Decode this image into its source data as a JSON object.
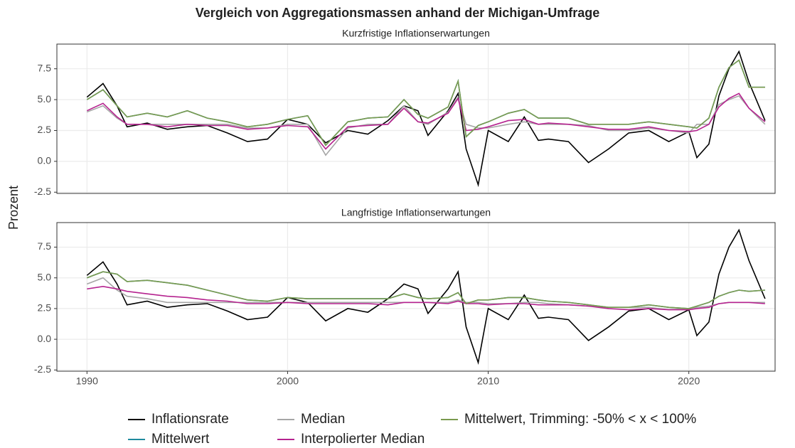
{
  "chart_data": {
    "type": "line",
    "title": "Vergleich von Aggregationsmassen anhand der Michigan-Umfrage",
    "ylabel": "Prozent",
    "grid": true,
    "legend": "bottom",
    "x": [
      1990,
      1990.8,
      1991.5,
      1992,
      1993,
      1994,
      1995,
      1996,
      1997,
      1998,
      1999,
      2000,
      2001,
      2001.9,
      2003,
      2004,
      2005,
      2005.8,
      2006.5,
      2007,
      2008,
      2008.5,
      2008.9,
      2009.5,
      2010,
      2011,
      2011.8,
      2012.5,
      2013,
      2014,
      2015,
      2016,
      2017,
      2018,
      2019,
      2020,
      2020.4,
      2021,
      2021.5,
      2022,
      2022.5,
      2023,
      2023.8
    ],
    "xlim": [
      1988.5,
      2024.3
    ],
    "xticks": [
      1990,
      2000,
      2010,
      2020
    ],
    "ylim": [
      -2.6,
      9.5
    ],
    "yticks": [
      -2.5,
      {
        "value": 0,
        "label": "0.0"
      },
      2.5,
      {
        "value": 5,
        "label": "5.0"
      },
      7.5
    ],
    "series": [
      {
        "name": "Inflationsrate",
        "color": "#000000"
      },
      {
        "name": "Mittelwert",
        "color": "#1f8a9e"
      },
      {
        "name": "Median",
        "color": "#a6a6a6"
      },
      {
        "name": "Interpolierter Median",
        "color": "#b5238f"
      },
      {
        "name": "Mittelwert, Trimming: -50% < x < 100%",
        "color": "#7a9a4e"
      }
    ],
    "panels": [
      {
        "subtitle": "Kurzfristige Inflationserwartungen",
        "series": [
          {
            "values": [
              5.2,
              6.3,
              4.5,
              2.8,
              3.1,
              2.6,
              2.8,
              2.9,
              2.3,
              1.6,
              1.8,
              3.4,
              3.0,
              1.5,
              2.5,
              2.2,
              3.3,
              4.5,
              4.1,
              2.1,
              4.1,
              5.5,
              1.0,
              -1.9,
              2.5,
              1.6,
              3.6,
              1.7,
              1.8,
              1.6,
              -0.1,
              1.0,
              2.3,
              2.5,
              1.6,
              2.4,
              0.3,
              1.4,
              5.3,
              7.5,
              8.9,
              6.4,
              3.3
            ]
          },
          {
            "values": [
              5.0,
              5.8,
              4.5,
              3.6,
              3.9,
              3.6,
              4.1,
              3.5,
              3.2,
              2.8,
              3.0,
              3.4,
              3.7,
              1.3,
              3.2,
              3.5,
              3.6,
              5.0,
              3.8,
              3.5,
              4.4,
              6.5,
              2.0,
              2.9,
              3.2,
              3.9,
              4.2,
              3.5,
              3.5,
              3.5,
              3.0,
              3.0,
              3.0,
              3.2,
              3.0,
              2.8,
              2.7,
              3.5,
              6.0,
              7.6,
              8.2,
              6.0,
              6.0
            ]
          },
          {
            "values": [
              4.0,
              4.5,
              3.5,
              3.0,
              3.0,
              3.0,
              3.0,
              3.0,
              3.0,
              2.7,
              2.7,
              3.0,
              3.0,
              0.5,
              2.7,
              3.0,
              3.0,
              4.5,
              3.2,
              3.0,
              4.0,
              5.2,
              3.0,
              2.7,
              2.7,
              3.0,
              3.2,
              3.0,
              3.0,
              3.0,
              2.9,
              2.5,
              2.5,
              2.7,
              2.5,
              2.3,
              3.0,
              3.0,
              4.6,
              5.0,
              5.3,
              4.3,
              3.0
            ]
          },
          {
            "values": [
              4.1,
              4.7,
              3.6,
              3.0,
              3.0,
              2.8,
              3.0,
              2.9,
              2.9,
              2.6,
              2.7,
              2.9,
              2.8,
              1.0,
              2.8,
              2.9,
              3.0,
              4.3,
              3.2,
              3.1,
              3.9,
              5.1,
              2.5,
              2.6,
              2.8,
              3.3,
              3.4,
              3.0,
              3.1,
              3.0,
              2.8,
              2.6,
              2.6,
              2.8,
              2.5,
              2.4,
              2.5,
              3.0,
              4.4,
              5.1,
              5.5,
              4.3,
              3.2
            ]
          },
          {
            "values": [
              5.0,
              5.8,
              4.5,
              3.6,
              3.9,
              3.6,
              4.1,
              3.5,
              3.2,
              2.8,
              3.0,
              3.4,
              3.7,
              1.3,
              3.2,
              3.5,
              3.6,
              5.0,
              3.8,
              3.5,
              4.4,
              6.5,
              2.0,
              2.9,
              3.2,
              3.9,
              4.2,
              3.5,
              3.5,
              3.5,
              3.0,
              3.0,
              3.0,
              3.2,
              3.0,
              2.8,
              2.7,
              3.5,
              6.0,
              7.6,
              8.2,
              6.0,
              6.0
            ]
          }
        ]
      },
      {
        "subtitle": "Langfristige Inflationserwartungen",
        "series": [
          {
            "values": [
              5.2,
              6.3,
              4.5,
              2.8,
              3.1,
              2.6,
              2.8,
              2.9,
              2.3,
              1.6,
              1.8,
              3.4,
              3.0,
              1.5,
              2.5,
              2.2,
              3.3,
              4.5,
              4.1,
              2.1,
              4.1,
              5.5,
              1.0,
              -1.9,
              2.5,
              1.6,
              3.6,
              1.7,
              1.8,
              1.6,
              -0.1,
              1.0,
              2.3,
              2.5,
              1.6,
              2.4,
              0.3,
              1.4,
              5.3,
              7.5,
              8.9,
              6.4,
              3.3
            ]
          },
          {
            "values": [
              5.0,
              5.5,
              5.3,
              4.7,
              4.8,
              4.6,
              4.4,
              4.0,
              3.6,
              3.2,
              3.1,
              3.4,
              3.3,
              3.3,
              3.3,
              3.3,
              3.3,
              3.7,
              3.4,
              3.3,
              3.4,
              3.8,
              2.9,
              3.2,
              3.2,
              3.4,
              3.4,
              3.2,
              3.1,
              3.0,
              2.8,
              2.6,
              2.6,
              2.8,
              2.6,
              2.5,
              2.7,
              3.0,
              3.5,
              3.8,
              4.0,
              3.9,
              4.0
            ]
          },
          {
            "values": [
              4.5,
              5.0,
              4.0,
              3.5,
              3.3,
              3.0,
              3.0,
              3.0,
              3.0,
              3.0,
              3.0,
              3.0,
              3.0,
              3.0,
              3.0,
              3.0,
              3.0,
              3.0,
              3.0,
              3.0,
              3.0,
              3.2,
              3.0,
              3.0,
              2.9,
              2.9,
              3.0,
              3.0,
              2.9,
              2.8,
              2.7,
              2.6,
              2.6,
              2.6,
              2.4,
              2.5,
              2.6,
              2.7,
              2.9,
              3.0,
              3.0,
              3.0,
              3.0
            ]
          },
          {
            "values": [
              4.1,
              4.3,
              4.1,
              3.9,
              3.7,
              3.5,
              3.4,
              3.2,
              3.1,
              2.9,
              2.9,
              3.0,
              2.9,
              2.9,
              2.9,
              2.9,
              2.8,
              3.0,
              3.0,
              3.0,
              2.9,
              3.1,
              2.9,
              2.9,
              2.8,
              2.9,
              2.9,
              2.8,
              2.8,
              2.8,
              2.7,
              2.5,
              2.4,
              2.5,
              2.4,
              2.4,
              2.5,
              2.6,
              2.9,
              3.0,
              3.0,
              3.0,
              2.9
            ]
          },
          {
            "values": [
              5.0,
              5.5,
              5.3,
              4.7,
              4.8,
              4.6,
              4.4,
              4.0,
              3.6,
              3.2,
              3.1,
              3.4,
              3.3,
              3.3,
              3.3,
              3.3,
              3.3,
              3.7,
              3.4,
              3.3,
              3.4,
              3.8,
              2.9,
              3.2,
              3.2,
              3.4,
              3.4,
              3.2,
              3.1,
              3.0,
              2.8,
              2.6,
              2.6,
              2.8,
              2.6,
              2.5,
              2.7,
              3.0,
              3.5,
              3.8,
              4.0,
              3.9,
              4.0
            ]
          }
        ]
      }
    ]
  }
}
